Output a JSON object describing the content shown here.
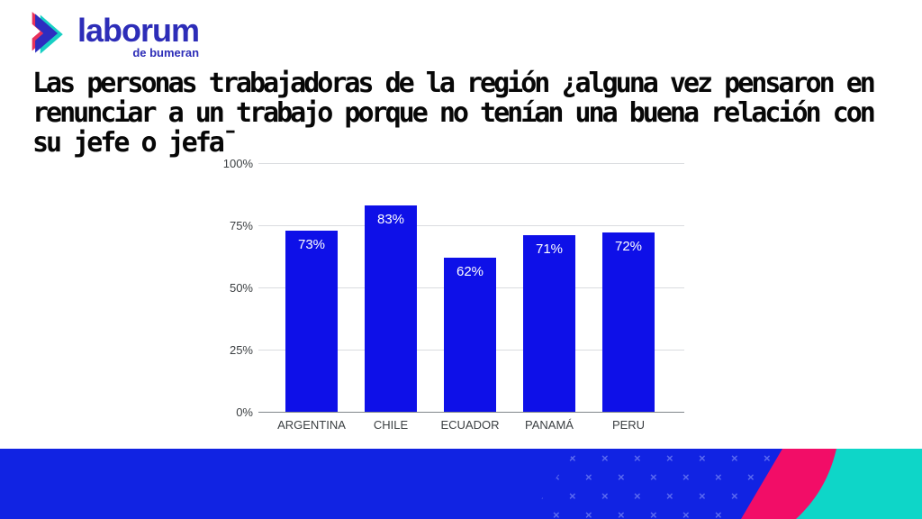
{
  "logo": {
    "brand": "laborum",
    "tagline": "de bumeran",
    "brand_color": "#2d2db8"
  },
  "title": {
    "lines": [
      "Las personas trabajadoras de la región ¿alguna vez pensaron en",
      "renunciar a un trabajo porque no tenían una buena relación con",
      "su jefe o jefa¯"
    ]
  },
  "chart_data": {
    "type": "bar",
    "categories": [
      "ARGENTINA",
      "CHILE",
      "ECUADOR",
      "PANAMÁ",
      "PERU"
    ],
    "values": [
      73,
      83,
      62,
      71,
      72
    ],
    "value_labels": [
      "73%",
      "83%",
      "62%",
      "71%",
      "72%"
    ],
    "y_ticks": [
      {
        "label": "0%",
        "value": 0
      },
      {
        "label": "25%",
        "value": 25
      },
      {
        "label": "50%",
        "value": 50
      },
      {
        "label": "75%",
        "value": 75
      },
      {
        "label": "100%",
        "value": 100
      }
    ],
    "ylim": [
      0,
      100
    ],
    "grid": true,
    "legend": "none",
    "bar_color": "#0e10e8",
    "value_label_color": "#ffffff",
    "title": "",
    "xlabel": "",
    "ylabel": ""
  },
  "decor": {
    "band_color": "#1123e3",
    "pink": "#f20d67",
    "teal": "#0ed6c8",
    "pattern": "x-marks",
    "pattern_color": "#5b6af0"
  }
}
